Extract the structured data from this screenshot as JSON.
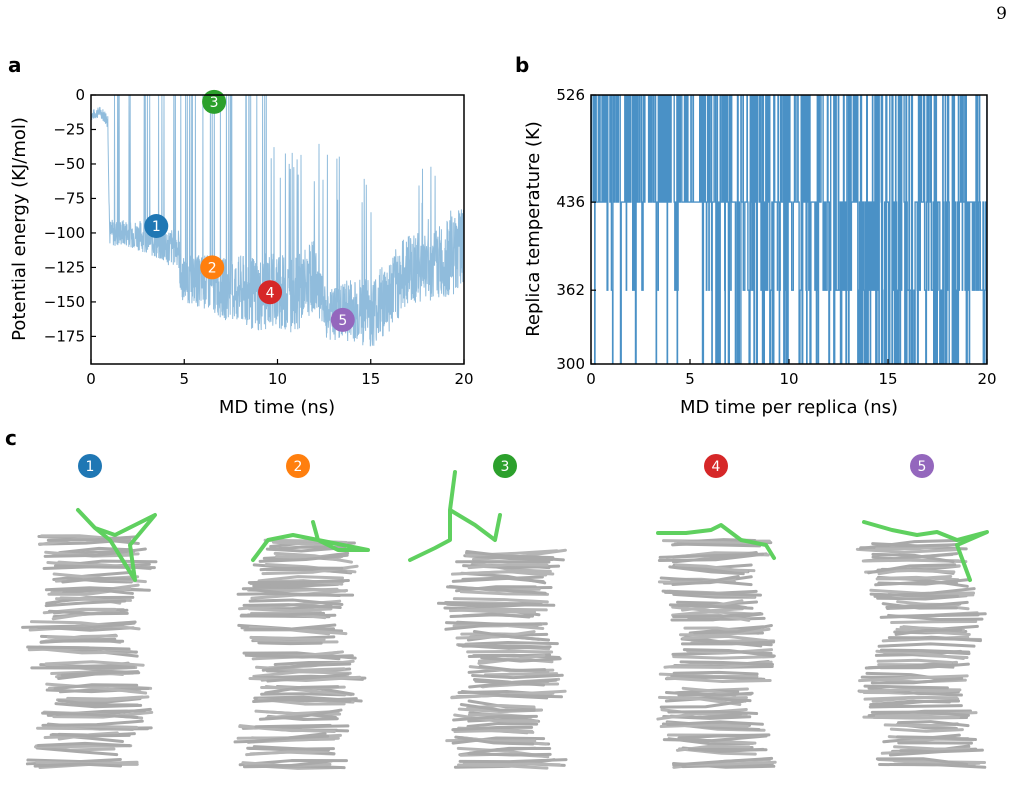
{
  "page_number": "9",
  "panel_labels": {
    "a": "a",
    "b": "b",
    "c": "c"
  },
  "colors": {
    "energy_trace": "#90bcdc",
    "temperature_trace": "#4a91c6",
    "axis": "#000000",
    "ligand": "#5fd05f",
    "dna": "#a9a9a9",
    "marker_1": "#1f77b4",
    "marker_2": "#ff7f0e",
    "marker_3": "#2ca02c",
    "marker_4": "#d62728",
    "marker_5": "#9467bd"
  },
  "chart_data": [
    {
      "panel": "a",
      "type": "line",
      "title": "",
      "xlabel": "MD time (ns)",
      "ylabel": "Potential energy (KJ/mol)",
      "xlim": [
        0,
        20
      ],
      "ylim": [
        -195,
        0
      ],
      "xticks": [
        0,
        5,
        10,
        15,
        20
      ],
      "yticks": [
        0,
        -25,
        -50,
        -75,
        -100,
        -125,
        -150,
        -175
      ],
      "grid": false,
      "series": [
        {
          "x": [
            0,
            0.5,
            0.9,
            1.0,
            2.0,
            3.0,
            4.0,
            4.7,
            4.8,
            6.0,
            7.0,
            8.0,
            9.0,
            9.5,
            10.0,
            11.0,
            12.0,
            12.5,
            13.0,
            14.0,
            15.0,
            16.0,
            17.0,
            18.0,
            19.0,
            20.0
          ],
          "y": [
            -15,
            -12,
            -18,
            -100,
            -100,
            -103,
            -110,
            -110,
            -133,
            -135,
            -140,
            -142,
            -145,
            -142,
            -143,
            -145,
            -130,
            -158,
            -160,
            -155,
            -158,
            -145,
            -125,
            -125,
            -120,
            -110
          ],
          "amplitude": [
            4,
            4,
            6,
            10,
            10,
            12,
            14,
            14,
            16,
            20,
            22,
            26,
            28,
            28,
            28,
            28,
            26,
            20,
            20,
            24,
            26,
            28,
            26,
            26,
            28,
            30
          ],
          "spike_top": [
            0,
            0,
            0,
            0,
            0,
            0,
            0,
            0,
            0,
            0,
            0,
            0,
            0,
            -30,
            -50,
            -55,
            -50,
            -50,
            -60,
            -60,
            -70,
            -60,
            -60,
            -75,
            -70,
            -75
          ]
        }
      ],
      "annotations": [
        {
          "label": "1",
          "x": 3.5,
          "y": -95,
          "color_key": "marker_1"
        },
        {
          "label": "2",
          "x": 6.5,
          "y": -125,
          "color_key": "marker_2"
        },
        {
          "label": "3",
          "x": 6.6,
          "y": -5,
          "color_key": "marker_3"
        },
        {
          "label": "4",
          "x": 9.6,
          "y": -143,
          "color_key": "marker_4"
        },
        {
          "label": "5",
          "x": 13.5,
          "y": -163,
          "color_key": "marker_5"
        }
      ]
    },
    {
      "panel": "b",
      "type": "line",
      "title": "",
      "xlabel": "MD time per replica (ns)",
      "ylabel": "Replica temperature (K)",
      "xlim": [
        0,
        20
      ],
      "ylim": [
        300,
        526
      ],
      "xticks": [
        0,
        5,
        10,
        15,
        20
      ],
      "yticks": [
        300,
        362,
        436,
        526
      ],
      "ytick_labels": [
        "300",
        "362",
        "436",
        "526"
      ],
      "levels": [
        300,
        362,
        436,
        526
      ],
      "grid": false,
      "series": [
        {
          "x": [
            0,
            2,
            4,
            6,
            8,
            10,
            12,
            14,
            16,
            18,
            20
          ],
          "level_probabilities": [
            [
              0.02,
              0.05,
              0.43,
              0.5
            ],
            [
              0.03,
              0.07,
              0.43,
              0.47
            ],
            [
              0.02,
              0.06,
              0.45,
              0.47
            ],
            [
              0.08,
              0.12,
              0.4,
              0.4
            ],
            [
              0.12,
              0.15,
              0.38,
              0.35
            ],
            [
              0.14,
              0.18,
              0.36,
              0.32
            ],
            [
              0.14,
              0.2,
              0.36,
              0.3
            ],
            [
              0.2,
              0.22,
              0.32,
              0.26
            ],
            [
              0.22,
              0.22,
              0.32,
              0.24
            ],
            [
              0.22,
              0.24,
              0.3,
              0.24
            ],
            [
              0.22,
              0.24,
              0.3,
              0.24
            ]
          ]
        }
      ]
    }
  ],
  "structures": [
    {
      "label": "1",
      "color_key": "marker_1",
      "ligand": "tilted"
    },
    {
      "label": "2",
      "color_key": "marker_2",
      "ligand": "stacked-edge"
    },
    {
      "label": "3",
      "color_key": "marker_3",
      "ligand": "detached"
    },
    {
      "label": "4",
      "color_key": "marker_4",
      "ligand": "end-stacked"
    },
    {
      "label": "5",
      "color_key": "marker_5",
      "ligand": "end-stacked"
    }
  ]
}
